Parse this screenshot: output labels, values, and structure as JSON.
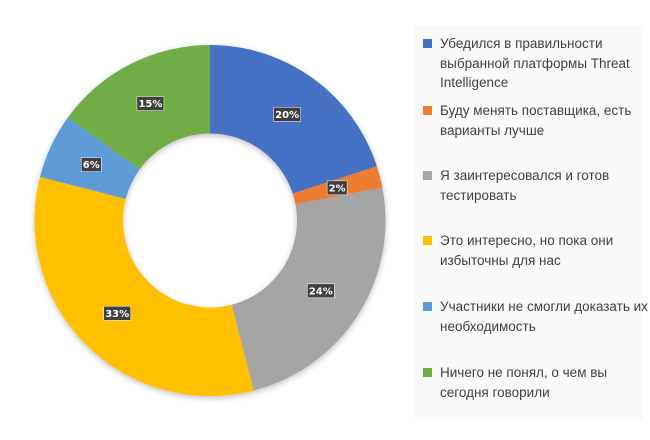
{
  "chart_data": {
    "type": "pie",
    "donut": true,
    "categories": [
      "Убедился в правильности выбранной платформы Threat Intelligence",
      "Буду менять поставщика, есть варианты лучше",
      "Я заинтересовался и готов тестировать",
      "Это интересно, но пока они избыточны для нас",
      "Участники не смогли доказать их необходимость",
      "Ничего не понял, о чем вы сегодня говорили"
    ],
    "values": [
      20,
      2,
      24,
      33,
      6,
      15
    ],
    "data_labels": [
      "20%",
      "2%",
      "24%",
      "33%",
      "6%",
      "15%"
    ],
    "colors": [
      "#4472c4",
      "#ed7d31",
      "#a5a5a5",
      "#ffc000",
      "#5b9bd5",
      "#70ad47"
    ],
    "legend_position": "right"
  }
}
